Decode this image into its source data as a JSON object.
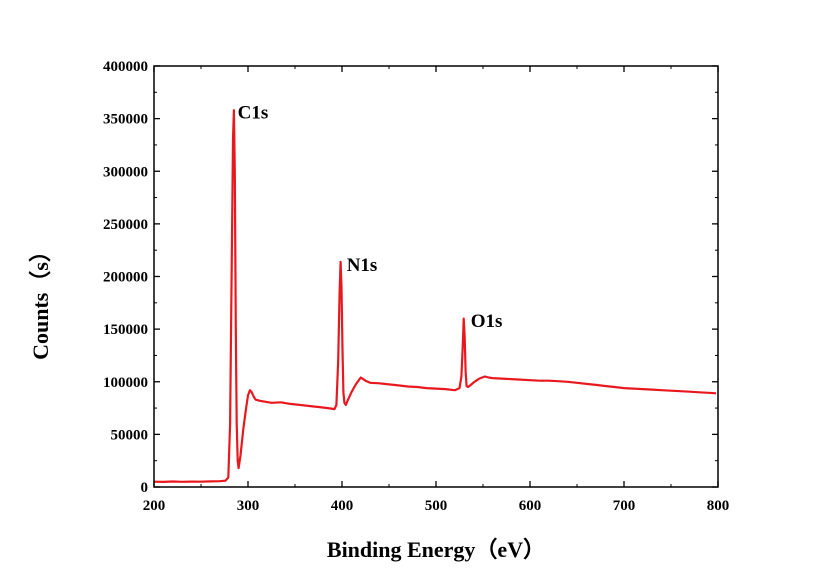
{
  "chart_data": {
    "type": "line",
    "title": "",
    "xlabel": "Binding Energy（eV）",
    "ylabel": "Counts（s）",
    "xlim": [
      200,
      800
    ],
    "ylim": [
      0,
      400000
    ],
    "x_ticks": [
      200,
      300,
      400,
      500,
      600,
      700,
      800
    ],
    "y_ticks": [
      0,
      50000,
      100000,
      150000,
      200000,
      250000,
      300000,
      350000,
      400000
    ],
    "grid": false,
    "legend": "none",
    "series": [
      {
        "color": "#e8191e",
        "x": [
          200,
          210,
          220,
          230,
          240,
          250,
          260,
          270,
          276,
          279,
          281,
          282.5,
          284,
          285,
          286,
          287,
          288,
          289,
          290,
          292,
          295,
          298,
          300,
          302,
          304,
          306,
          308,
          312,
          318,
          325,
          335,
          345,
          355,
          365,
          375,
          385,
          392,
          394,
          396,
          397.5,
          398.5,
          399.5,
          400.5,
          401.5,
          402.5,
          404,
          406,
          410,
          415,
          420,
          425,
          430,
          440,
          450,
          460,
          470,
          480,
          490,
          500,
          510,
          520,
          525,
          527,
          528.5,
          529.5,
          530.5,
          531.5,
          532.5,
          534,
          537,
          541,
          546,
          552,
          556,
          560,
          570,
          580,
          590,
          600,
          610,
          620,
          630,
          640,
          650,
          660,
          670,
          680,
          690,
          700,
          710,
          720,
          730,
          740,
          750,
          760,
          770,
          780,
          790,
          798
        ],
        "y": [
          5000,
          4800,
          5200,
          4900,
          5100,
          5000,
          5300,
          5500,
          6000,
          9000,
          60000,
          200000,
          330000,
          358000,
          300000,
          150000,
          60000,
          25000,
          18000,
          30000,
          55000,
          75000,
          87000,
          92000,
          90000,
          86000,
          83000,
          82000,
          81000,
          80000,
          80500,
          79000,
          78000,
          77000,
          76000,
          75000,
          74000,
          78000,
          120000,
          185000,
          214000,
          190000,
          130000,
          90000,
          80000,
          78000,
          82000,
          90000,
          98000,
          104000,
          101000,
          99000,
          98500,
          97500,
          96500,
          95500,
          95000,
          94000,
          93500,
          93000,
          92000,
          94000,
          105000,
          135000,
          160000,
          142000,
          110000,
          96000,
          95000,
          97000,
          100000,
          103000,
          105000,
          104000,
          103500,
          103000,
          102500,
          102000,
          101500,
          101000,
          101000,
          100500,
          100000,
          99000,
          98000,
          97000,
          96000,
          95000,
          94000,
          93500,
          93000,
          92500,
          92000,
          91500,
          91000,
          90500,
          90000,
          89500,
          89000
        ]
      }
    ],
    "annotations": [
      {
        "text": "C1s",
        "x": 289,
        "y": 350000
      },
      {
        "text": "N1s",
        "x": 405,
        "y": 205000
      },
      {
        "text": "O1s",
        "x": 537,
        "y": 152000
      }
    ]
  }
}
